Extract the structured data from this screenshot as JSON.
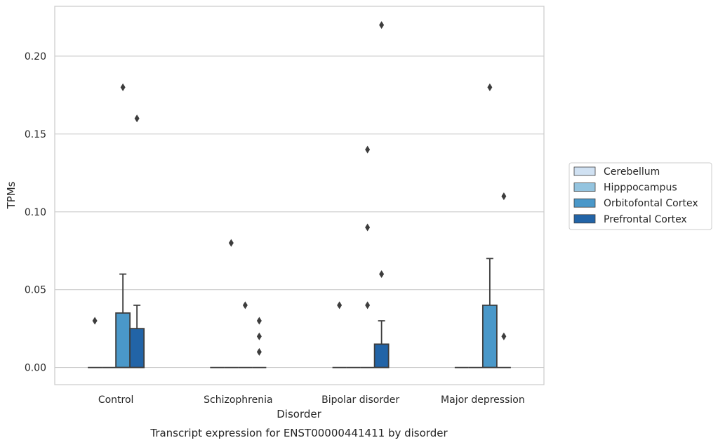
{
  "chart_data": {
    "type": "box",
    "caption": "Transcript expression for ENST00000441411 by disorder",
    "xlabel": "Disorder",
    "ylabel": "TPMs",
    "ylim": [
      -0.011,
      0.232
    ],
    "yticks": [
      0.0,
      0.05,
      0.1,
      0.15,
      0.2
    ],
    "ytick_labels": [
      "0.00",
      "0.05",
      "0.10",
      "0.15",
      "0.20"
    ],
    "grid": "horizontal",
    "legend_position": "right",
    "categories": [
      "Control",
      "Schizophrenia",
      "Bipolar disorder",
      "Major depression"
    ],
    "series": [
      {
        "name": "Cerebellum",
        "color": "#d0e1f2",
        "boxes": [
          {
            "q1": 0,
            "median": 0,
            "q3": 0,
            "whisker_low": 0,
            "whisker_high": 0,
            "outliers": [
              0.03
            ]
          },
          {
            "q1": 0,
            "median": 0,
            "q3": 0,
            "whisker_low": 0,
            "whisker_high": 0,
            "outliers": []
          },
          {
            "q1": 0,
            "median": 0,
            "q3": 0,
            "whisker_low": 0,
            "whisker_high": 0,
            "outliers": [
              0.04
            ]
          },
          {
            "q1": 0,
            "median": 0,
            "q3": 0,
            "whisker_low": 0,
            "whisker_high": 0,
            "outliers": []
          }
        ]
      },
      {
        "name": "Hipppocampus",
        "color": "#94c4df",
        "boxes": [
          {
            "q1": 0,
            "median": 0,
            "q3": 0,
            "whisker_low": 0,
            "whisker_high": 0,
            "outliers": []
          },
          {
            "q1": 0,
            "median": 0,
            "q3": 0,
            "whisker_low": 0,
            "whisker_high": 0,
            "outliers": [
              0.08
            ]
          },
          {
            "q1": 0,
            "median": 0,
            "q3": 0,
            "whisker_low": 0,
            "whisker_high": 0,
            "outliers": []
          },
          {
            "q1": 0,
            "median": 0,
            "q3": 0,
            "whisker_low": 0,
            "whisker_high": 0,
            "outliers": []
          }
        ]
      },
      {
        "name": "Orbitofontal Cortex",
        "color": "#4a98c9",
        "boxes": [
          {
            "q1": 0,
            "median": 0,
            "q3": 0.035,
            "whisker_low": 0,
            "whisker_high": 0.06,
            "outliers": [
              0.18
            ]
          },
          {
            "q1": 0,
            "median": 0,
            "q3": 0,
            "whisker_low": 0,
            "whisker_high": 0,
            "outliers": [
              0.04
            ]
          },
          {
            "q1": 0,
            "median": 0,
            "q3": 0,
            "whisker_low": 0,
            "whisker_high": 0,
            "outliers": [
              0.14,
              0.09,
              0.04
            ]
          },
          {
            "q1": 0,
            "median": 0,
            "q3": 0.04,
            "whisker_low": 0,
            "whisker_high": 0.07,
            "outliers": [
              0.18
            ]
          }
        ]
      },
      {
        "name": "Prefrontal Cortex",
        "color": "#2264a7",
        "boxes": [
          {
            "q1": 0,
            "median": 0,
            "q3": 0.025,
            "whisker_low": 0,
            "whisker_high": 0.04,
            "outliers": [
              0.16
            ]
          },
          {
            "q1": 0,
            "median": 0,
            "q3": 0,
            "whisker_low": 0,
            "whisker_high": 0,
            "outliers": [
              0.03,
              0.02,
              0.01
            ]
          },
          {
            "q1": 0,
            "median": 0,
            "q3": 0.015,
            "whisker_low": 0,
            "whisker_high": 0.03,
            "outliers": [
              0.22,
              0.06
            ]
          },
          {
            "q1": 0,
            "median": 0,
            "q3": 0,
            "whisker_low": 0,
            "whisker_high": 0,
            "outliers": [
              0.11,
              0.02
            ]
          }
        ]
      }
    ]
  }
}
